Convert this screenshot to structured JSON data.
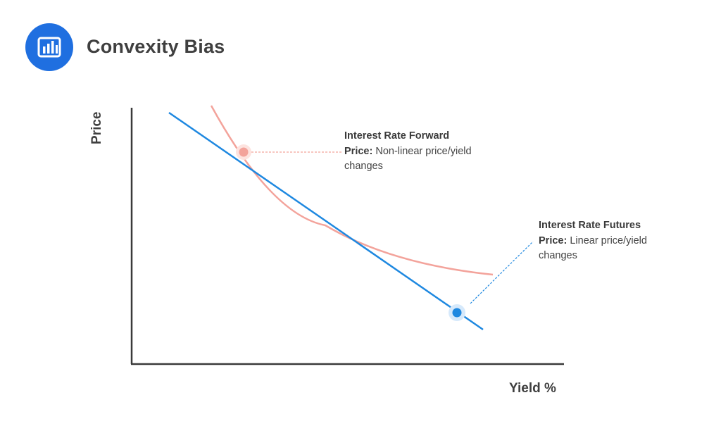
{
  "header": {
    "title": "Convexity Bias",
    "icon": "bar-chart-icon",
    "icon_color": "#1f6fe0"
  },
  "diagram": {
    "y_axis_label": "Price",
    "x_axis_label": "Yield %",
    "forward": {
      "title": "Interest Rate Forward",
      "bold_prefix": "Price:",
      "description": "Non-linear price/yield changes",
      "color": "#f3a39b",
      "shape": "convex curve"
    },
    "futures": {
      "title": "Interest Rate Futures",
      "bold_prefix": "Price:",
      "description": "Linear price/yield changes",
      "color": "#1e88e0",
      "shape": "straight line"
    },
    "axis_color": "#3a3a3a"
  }
}
